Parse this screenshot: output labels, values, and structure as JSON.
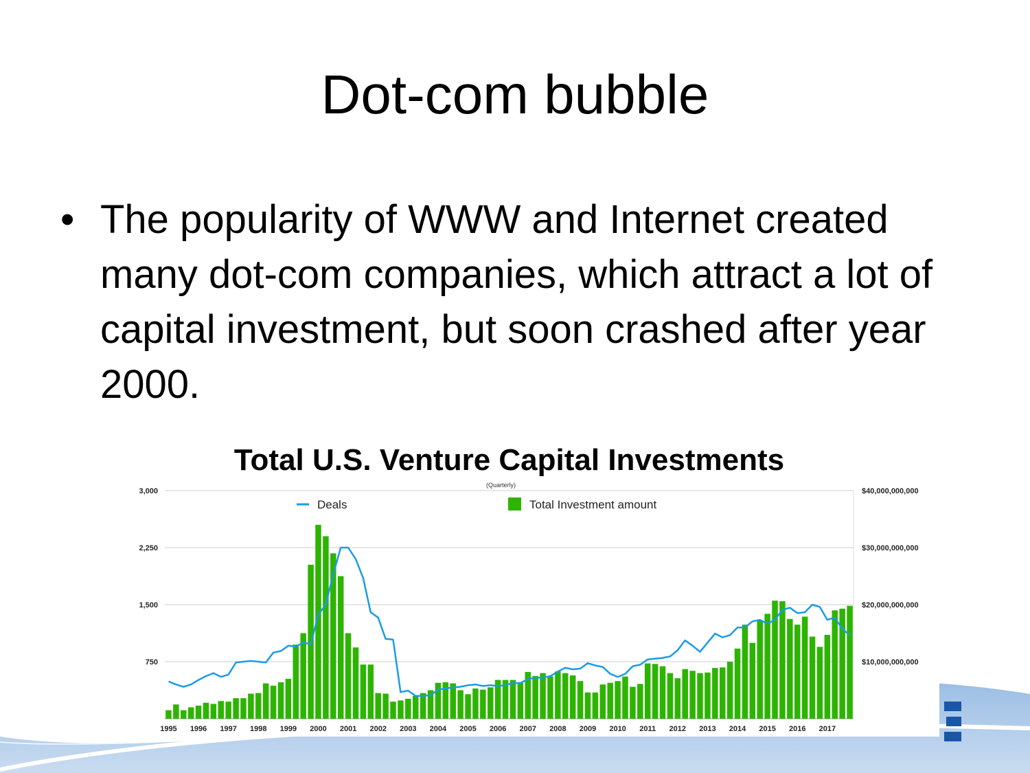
{
  "slide": {
    "title": "Dot-com bubble",
    "bullet": "The popularity of WWW and Internet created many dot-com companies, which attract a lot of capital investment, but soon crashed after year 2000."
  },
  "colors": {
    "bars": "#2db400",
    "line": "#1a9be6",
    "grid": "#cccccc",
    "wave": "#5a8fc8",
    "logo": "#1a56a8"
  },
  "chart_data": {
    "type": "bar+line",
    "title": "Total U.S. Venture Capital Investments",
    "subtitle": "(Quarterly)",
    "legend": {
      "placement": "top",
      "series_line": "Deals",
      "series_bars": "Total Investment amount"
    },
    "y_left": {
      "ticks": [
        "3,000",
        "2,250",
        "1,500",
        "750"
      ],
      "range": [
        0,
        3000
      ]
    },
    "y_right": {
      "ticks": [
        "$40,000,000,000",
        "$30,000,000,000",
        "$20,000,000,000",
        "$10,000,000,000"
      ],
      "range": [
        0,
        40000000000
      ]
    },
    "x_years": [
      "1995",
      "1996",
      "1997",
      "1998",
      "1999",
      "2000",
      "2001",
      "2002",
      "2003",
      "2004",
      "2005",
      "2006",
      "2007",
      "2008",
      "2009",
      "2010",
      "2011",
      "2012",
      "2013",
      "2014",
      "2015",
      "2016",
      "2017"
    ],
    "bars_billions": [
      1.5,
      2.5,
      1.5,
      2,
      2.3,
      2.8,
      2.6,
      3.1,
      3,
      3.6,
      3.6,
      4.4,
      4.5,
      6.2,
      5.8,
      6.4,
      7,
      13,
      15,
      27,
      34,
      32,
      29,
      25,
      15,
      12.5,
      9.5,
      9.5,
      4.5,
      4.4,
      3,
      3.2,
      3.5,
      4,
      4.5,
      5,
      6.3,
      6.4,
      6.2,
      5,
      4.3,
      5.3,
      5.1,
      5.5,
      6.8,
      6.8,
      6.8,
      6.3,
      8.2,
      7.5,
      8,
      7.4,
      8.3,
      8,
      7.6,
      6.6,
      4.6,
      4.6,
      6,
      6.3,
      6.6,
      7.4,
      5.6,
      6.1,
      9.7,
      9.6,
      9.2,
      8,
      7.1,
      8.7,
      8.4,
      8,
      8.1,
      8.9,
      9,
      10,
      12.3,
      16.5,
      13.3,
      17.2,
      18.4,
      20.7,
      20.6,
      17.5,
      16.5,
      17.9,
      14.4,
      12.6,
      14.7,
      19,
      19.3,
      19.8
    ],
    "deals": [
      490,
      450,
      420,
      450,
      510,
      560,
      600,
      550,
      580,
      740,
      750,
      760,
      750,
      740,
      870,
      890,
      960,
      950,
      1000,
      980,
      1370,
      1500,
      1900,
      2250,
      2250,
      2100,
      1850,
      1400,
      1330,
      1050,
      1040,
      350,
      370,
      300,
      300,
      310,
      380,
      400,
      410,
      420,
      440,
      450,
      430,
      440,
      430,
      440,
      470,
      470,
      520,
      540,
      540,
      560,
      620,
      670,
      650,
      660,
      730,
      700,
      680,
      590,
      550,
      590,
      690,
      710,
      780,
      790,
      800,
      820,
      900,
      1030,
      960,
      880,
      1000,
      1120,
      1070,
      1100,
      1200,
      1200,
      1280,
      1300,
      1250,
      1300,
      1430,
      1460,
      1390,
      1400,
      1500,
      1470,
      1300,
      1330,
      1180,
      1100
    ]
  }
}
